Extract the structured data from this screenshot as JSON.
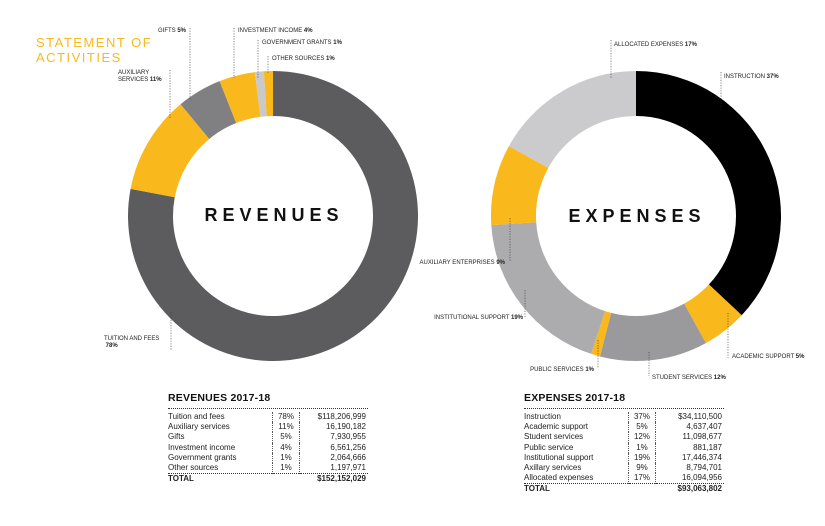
{
  "heading": "STATEMENT OF ACTIVITIES",
  "chart_data": [
    {
      "type": "pie",
      "title": "REVENUES",
      "colors": [
        "#5c5c5e",
        "#f9b81b",
        "#808083",
        "#f9b81b",
        "#c9c9cb",
        "#f9b81b"
      ],
      "slices": [
        {
          "label": "TUITION AND FEES",
          "pct_label": "78%",
          "value": 78
        },
        {
          "label": "AUXILIARY SERVICES",
          "pct_label": "11%",
          "value": 11
        },
        {
          "label": "GIFTS",
          "pct_label": "5%",
          "value": 5
        },
        {
          "label": "INVESTMENT INCOME",
          "pct_label": "4%",
          "value": 4
        },
        {
          "label": "GOVERNMENT GRANTS",
          "pct_label": "1%",
          "value": 1
        },
        {
          "label": "OTHER SOURCES",
          "pct_label": "1%",
          "value": 1
        }
      ]
    },
    {
      "type": "pie",
      "title": "EXPENSES",
      "colors": [
        "#000000",
        "#f9b81b",
        "#9a9a9d",
        "#f9b81b",
        "#acacae",
        "#f9b81b",
        "#cbcbcd"
      ],
      "slices": [
        {
          "label": "INSTRUCTION",
          "pct_label": "37%",
          "value": 37
        },
        {
          "label": "ACADEMIC SUPPORT",
          "pct_label": "5%",
          "value": 5
        },
        {
          "label": "STUDENT SERVICES",
          "pct_label": "12%",
          "value": 12
        },
        {
          "label": "PUBLIC SERVICES",
          "pct_label": "1%",
          "value": 1
        },
        {
          "label": "INSTITUTIONAL SUPPORT",
          "pct_label": "19%",
          "value": 19
        },
        {
          "label": "AUXILIARY ENTERPRISES",
          "pct_label": "9%",
          "value": 9
        },
        {
          "label": "ALLOCATED EXPENSES",
          "pct_label": "17%",
          "value": 17
        }
      ]
    }
  ],
  "revenue_table": {
    "title": "REVENUES 2017-18",
    "rows": [
      {
        "label": "Tuition and fees",
        "pct": "78%",
        "amount": "$118,206,999"
      },
      {
        "label": "Auxiliary services",
        "pct": "11%",
        "amount": "16,190,182"
      },
      {
        "label": "Gifts",
        "pct": "5%",
        "amount": "7,930,955"
      },
      {
        "label": "Investment income",
        "pct": "4%",
        "amount": "6,561,256"
      },
      {
        "label": "Government grants",
        "pct": "1%",
        "amount": "2,064,666"
      },
      {
        "label": "Other sources",
        "pct": "1%",
        "amount": "1,197,971"
      }
    ],
    "total_label": "TOTAL",
    "total_amount": "$152,152,029"
  },
  "expense_table": {
    "title": "EXPENSES 2017-18",
    "rows": [
      {
        "label": "Instruction",
        "pct": "37%",
        "amount": "$34,110,500"
      },
      {
        "label": "Academic support",
        "pct": "5%",
        "amount": "4,637,407"
      },
      {
        "label": "Student services",
        "pct": "12%",
        "amount": "11,098,677"
      },
      {
        "label": "Public service",
        "pct": "1%",
        "amount": "881,187"
      },
      {
        "label": "Institutional support",
        "pct": "19%",
        "amount": "17,446,374"
      },
      {
        "label": "Axillary services",
        "pct": "9%",
        "amount": "8,794,701"
      },
      {
        "label": "Allocated expenses",
        "pct": "17%",
        "amount": "16,094,956"
      }
    ],
    "total_label": "TOTAL",
    "total_amount": "$93,063,802"
  }
}
